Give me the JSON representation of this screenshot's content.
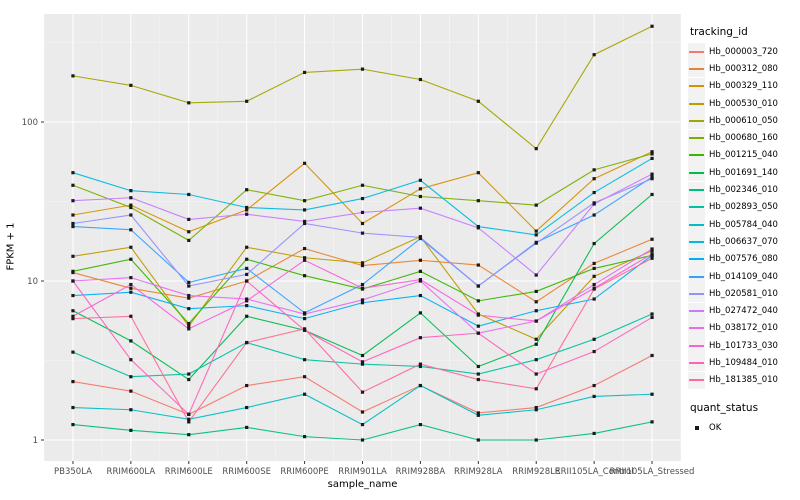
{
  "axes": {
    "x_title": "sample_name",
    "y_title": "FPKM + 1"
  },
  "legend": {
    "series_title": "tracking_id",
    "status_title": "quant_status",
    "status_label": "OK"
  },
  "style": {
    "panel_bg": "#EBEBEB",
    "grid_major": "#FFFFFF",
    "grid_minor": "#F5F5F5",
    "tick_color": "#333333",
    "tick_label_color": "#4D4D4D",
    "point_color": "#1A1A1A",
    "legend_key_bg": "#F2F2F2"
  },
  "chart_data": {
    "type": "line",
    "title": "",
    "xlabel": "sample_name",
    "ylabel": "FPKM + 1",
    "y_scale": "log10",
    "ylim": [
      1,
      450
    ],
    "y_ticks": [
      1,
      10,
      100
    ],
    "y_minor_ticks": [
      3.162,
      31.62,
      316.2
    ],
    "grid": true,
    "legend_position": "right",
    "point_shape": "square",
    "quant_status": "OK",
    "x_categories": [
      "PB350LA",
      "RRIM600LA",
      "RRIM600LE",
      "RRIM600SE",
      "RRIM600PE",
      "RRIM901LA",
      "RRIM928BA",
      "RRIM928LA",
      "RRIM928LE",
      "RRII105LA_Control",
      "RRII105LA_Stressed"
    ],
    "series": [
      {
        "name": "Hb_000003_720",
        "color": "#F8766D",
        "values": [
          2.33,
          2.03,
          1.45,
          2.2,
          2.5,
          1.5,
          2.2,
          1.48,
          1.6,
          2.2,
          3.4
        ]
      },
      {
        "name": "Hb_000312_080",
        "color": "#EA8331",
        "values": [
          11.3,
          9.0,
          7.8,
          10.0,
          16.0,
          12.5,
          13.5,
          12.6,
          7.4,
          12.9,
          18.3
        ]
      },
      {
        "name": "Hb_000329_110",
        "color": "#D89000",
        "values": [
          26,
          30,
          20.4,
          28,
          55,
          23,
          38,
          48,
          20.6,
          44,
          65
        ]
      },
      {
        "name": "Hb_000530_010",
        "color": "#C09B00",
        "values": [
          14.3,
          16.3,
          5.2,
          16.3,
          14.0,
          13.0,
          19.0,
          6.2,
          4.3,
          10.7,
          15.5
        ]
      },
      {
        "name": "Hb_000610_050",
        "color": "#A3A500",
        "values": [
          195,
          170,
          132,
          135,
          205,
          215,
          185,
          135,
          68,
          265,
          400
        ]
      },
      {
        "name": "Hb_000680_160",
        "color": "#7CAE00",
        "values": [
          40,
          29,
          18,
          37.5,
          32,
          40,
          34,
          32,
          30,
          50,
          63
        ]
      },
      {
        "name": "Hb_001215_040",
        "color": "#39B600",
        "values": [
          11.5,
          13.7,
          5.4,
          13.7,
          10.8,
          8.9,
          11.5,
          7.5,
          8.6,
          12.0,
          14.5
        ]
      },
      {
        "name": "Hb_001691_140",
        "color": "#00BB4E",
        "values": [
          6.5,
          4.2,
          2.4,
          6.0,
          4.9,
          3.4,
          6.3,
          2.9,
          4.0,
          17.2,
          35
        ]
      },
      {
        "name": "Hb_002346_010",
        "color": "#00BF7D",
        "values": [
          1.25,
          1.15,
          1.08,
          1.2,
          1.05,
          1.0,
          1.25,
          1.0,
          1.0,
          1.1,
          1.3
        ]
      },
      {
        "name": "Hb_002893_050",
        "color": "#00C1A3",
        "values": [
          3.57,
          2.5,
          2.6,
          4.1,
          3.2,
          3.0,
          2.9,
          2.6,
          3.2,
          4.3,
          6.2
        ]
      },
      {
        "name": "Hb_005784_040",
        "color": "#00BFC4",
        "values": [
          1.6,
          1.55,
          1.35,
          1.6,
          1.94,
          1.25,
          2.2,
          1.43,
          1.55,
          1.88,
          1.94
        ]
      },
      {
        "name": "Hb_006637_070",
        "color": "#00BAE0",
        "values": [
          48,
          37,
          35,
          29,
          28,
          33,
          43,
          22,
          19.5,
          36,
          59
        ]
      },
      {
        "name": "Hb_007576_080",
        "color": "#00B0F6",
        "values": [
          8.1,
          8.5,
          6.7,
          7.0,
          5.8,
          7.3,
          8.1,
          5.2,
          6.5,
          7.7,
          14.5
        ]
      },
      {
        "name": "Hb_014109_040",
        "color": "#35A2FF",
        "values": [
          22,
          21,
          9.8,
          12,
          6.3,
          9.5,
          18.5,
          9.3,
          17.5,
          26,
          45
        ]
      },
      {
        "name": "Hb_020581_010",
        "color": "#9590FF",
        "values": [
          23,
          26,
          9.3,
          11,
          23,
          20,
          18.8,
          9.3,
          17.3,
          31,
          44
        ]
      },
      {
        "name": "Hb_027472_040",
        "color": "#C77CFF",
        "values": [
          32,
          33.4,
          24.4,
          26.3,
          23.7,
          27,
          28.7,
          21.6,
          10.9,
          30.5,
          47
        ]
      },
      {
        "name": "Hb_038172_010",
        "color": "#E76BF3",
        "values": [
          10,
          10.5,
          8.1,
          7.7,
          6.2,
          7.6,
          10,
          4.7,
          5.6,
          9.5,
          15.9
        ]
      },
      {
        "name": "Hb_101733_030",
        "color": "#FA62DB",
        "values": [
          6.0,
          9.5,
          5.0,
          7.5,
          13.5,
          9.0,
          10.2,
          6.1,
          5.6,
          9.0,
          14.8
        ]
      },
      {
        "name": "Hb_109484_010",
        "color": "#FF62BC",
        "values": [
          10,
          3.2,
          1.45,
          10,
          4.9,
          3.1,
          4.4,
          4.7,
          2.6,
          3.6,
          5.9
        ]
      },
      {
        "name": "Hb_181385_010",
        "color": "#FF6A98",
        "values": [
          5.8,
          6.0,
          1.3,
          4.1,
          5.0,
          2.0,
          3.0,
          2.4,
          2.1,
          8.9,
          13.9
        ]
      }
    ]
  }
}
